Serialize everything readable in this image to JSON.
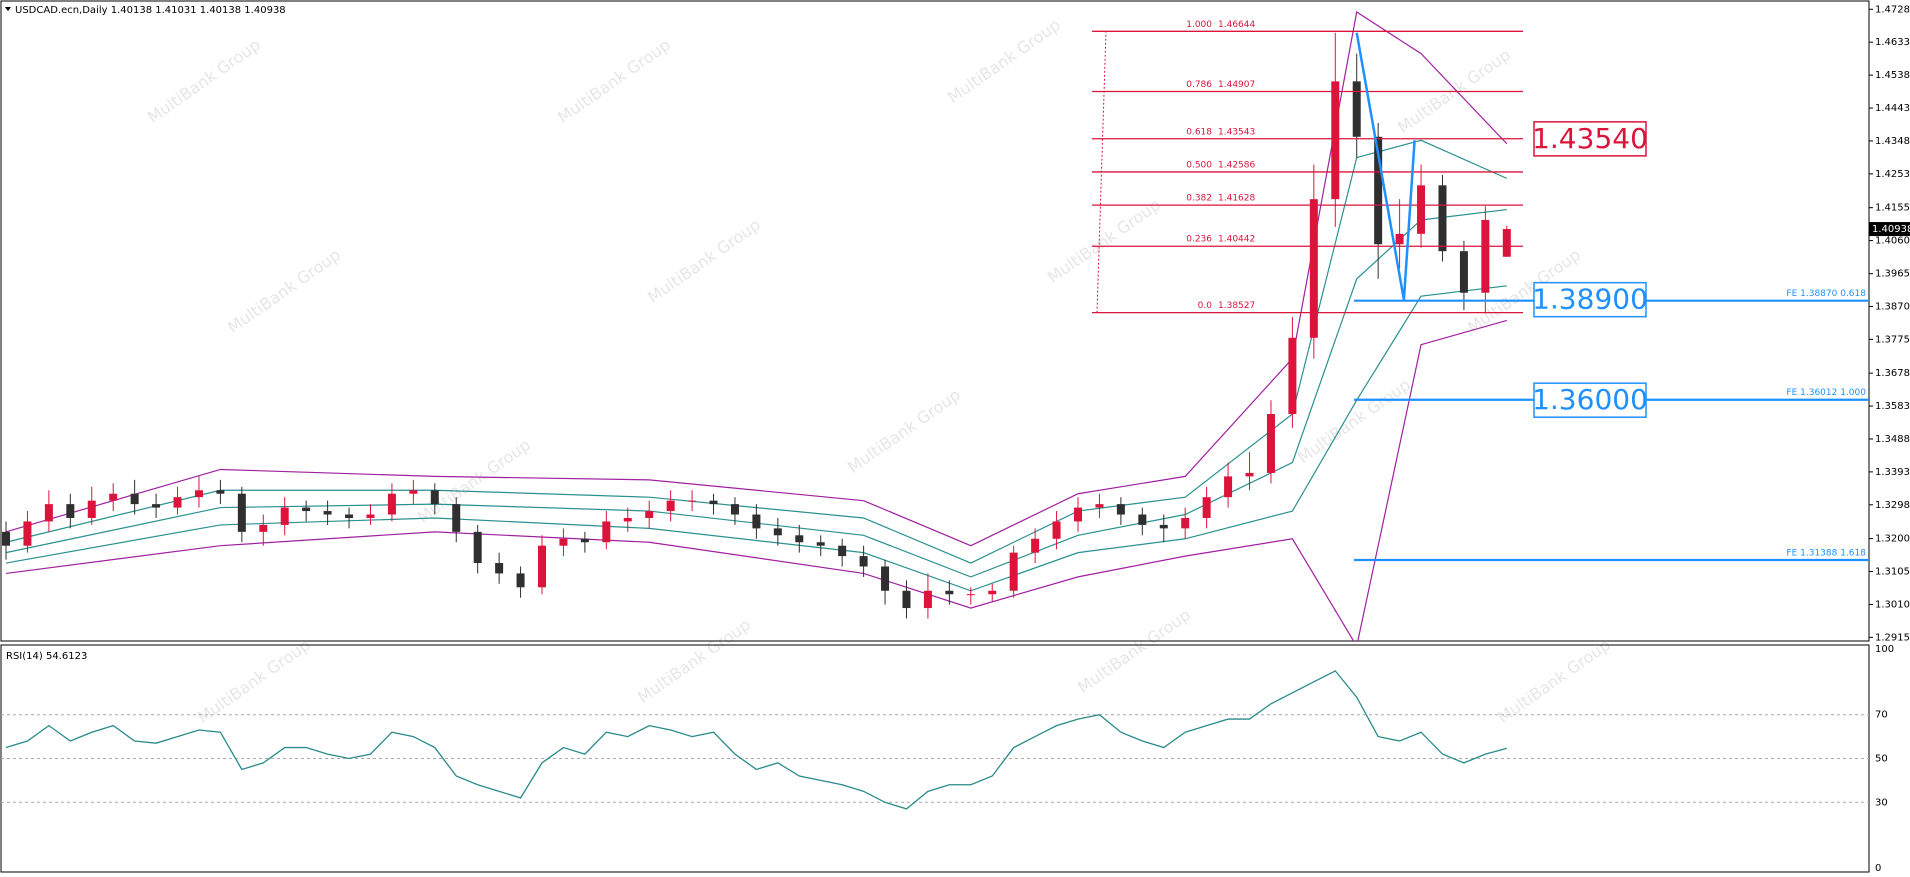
{
  "watermark": "MultiBank Group",
  "chart_data": [
    {
      "type": "candlestick",
      "title": "USDCAD.ecn,Daily  1.40138 1.41031 1.40138 1.40938",
      "up_color": "#dc143c",
      "down_color": "#2f2f2f",
      "open": [
        1.322,
        1.318,
        1.325,
        1.33,
        1.326,
        1.331,
        1.333,
        1.33,
        1.329,
        1.332,
        1.334,
        1.333,
        1.322,
        1.324,
        1.329,
        1.328,
        1.327,
        1.326,
        1.327,
        1.333,
        1.334,
        1.33,
        1.322,
        1.313,
        1.31,
        1.306,
        1.318,
        1.32,
        1.319,
        1.325,
        1.326,
        1.328,
        1.331,
        1.331,
        1.33,
        1.327,
        1.323,
        1.321,
        1.319,
        1.318,
        1.315,
        1.312,
        1.305,
        1.3,
        1.305,
        1.304,
        1.304,
        1.305,
        1.316,
        1.32,
        1.325,
        1.329,
        1.33,
        1.327,
        1.324,
        1.323,
        1.326,
        1.332,
        1.338,
        1.339,
        1.356,
        1.378,
        1.418,
        1.452,
        1.436,
        1.405,
        1.408,
        1.422,
        1.403,
        1.391,
        1.40138
      ],
      "high": [
        1.325,
        1.328,
        1.334,
        1.333,
        1.335,
        1.336,
        1.337,
        1.333,
        1.335,
        1.338,
        1.337,
        1.335,
        1.327,
        1.332,
        1.331,
        1.331,
        1.329,
        1.33,
        1.336,
        1.337,
        1.336,
        1.332,
        1.324,
        1.316,
        1.312,
        1.321,
        1.323,
        1.322,
        1.328,
        1.329,
        1.331,
        1.334,
        1.334,
        1.333,
        1.332,
        1.33,
        1.326,
        1.324,
        1.321,
        1.32,
        1.318,
        1.314,
        1.308,
        1.31,
        1.308,
        1.306,
        1.307,
        1.318,
        1.323,
        1.328,
        1.332,
        1.333,
        1.332,
        1.329,
        1.327,
        1.329,
        1.335,
        1.342,
        1.345,
        1.36,
        1.384,
        1.428,
        1.466,
        1.46,
        1.44,
        1.418,
        1.428,
        1.425,
        1.406,
        1.416,
        1.41031
      ],
      "low": [
        1.314,
        1.316,
        1.322,
        1.323,
        1.324,
        1.328,
        1.327,
        1.326,
        1.327,
        1.329,
        1.33,
        1.319,
        1.318,
        1.321,
        1.325,
        1.324,
        1.323,
        1.324,
        1.325,
        1.33,
        1.327,
        1.319,
        1.31,
        1.307,
        1.303,
        1.304,
        1.315,
        1.316,
        1.317,
        1.322,
        1.323,
        1.325,
        1.328,
        1.327,
        1.324,
        1.32,
        1.318,
        1.316,
        1.315,
        1.312,
        1.309,
        1.301,
        1.297,
        1.297,
        1.301,
        1.301,
        1.302,
        1.303,
        1.313,
        1.317,
        1.322,
        1.326,
        1.324,
        1.321,
        1.319,
        1.32,
        1.323,
        1.329,
        1.334,
        1.336,
        1.352,
        1.372,
        1.41,
        1.43,
        1.395,
        1.398,
        1.404,
        1.4,
        1.386,
        1.385,
        1.40138
      ],
      "close": [
        1.318,
        1.325,
        1.33,
        1.326,
        1.331,
        1.333,
        1.33,
        1.329,
        1.332,
        1.334,
        1.333,
        1.322,
        1.324,
        1.329,
        1.328,
        1.327,
        1.326,
        1.327,
        1.333,
        1.334,
        1.33,
        1.322,
        1.313,
        1.31,
        1.306,
        1.318,
        1.32,
        1.319,
        1.325,
        1.326,
        1.328,
        1.331,
        1.331,
        1.33,
        1.327,
        1.323,
        1.321,
        1.319,
        1.318,
        1.315,
        1.312,
        1.305,
        1.3,
        1.305,
        1.304,
        1.304,
        1.305,
        1.316,
        1.32,
        1.325,
        1.329,
        1.33,
        1.327,
        1.324,
        1.323,
        1.326,
        1.332,
        1.338,
        1.339,
        1.356,
        1.378,
        1.418,
        1.452,
        1.436,
        1.405,
        1.408,
        1.422,
        1.403,
        1.391,
        1.412,
        1.40938
      ],
      "band_x": [
        0,
        10,
        20,
        30,
        40,
        45,
        50,
        55,
        60,
        63,
        66,
        70
      ],
      "bands": [
        {
          "color": "#a020a0",
          "values": [
            1.322,
            1.34,
            1.338,
            1.337,
            1.331,
            1.318,
            1.333,
            1.338,
            1.372,
            1.472,
            1.46,
            1.434
          ]
        },
        {
          "color": "#2a9090",
          "values": [
            1.319,
            1.334,
            1.334,
            1.332,
            1.326,
            1.313,
            1.328,
            1.332,
            1.356,
            1.43,
            1.435,
            1.424
          ]
        },
        {
          "color": "#2a9090",
          "values": [
            1.316,
            1.329,
            1.33,
            1.328,
            1.321,
            1.309,
            1.321,
            1.327,
            1.342,
            1.395,
            1.412,
            1.415
          ]
        },
        {
          "color": "#2a9090",
          "values": [
            1.313,
            1.324,
            1.326,
            1.323,
            1.316,
            1.305,
            1.316,
            1.32,
            1.328,
            1.36,
            1.39,
            1.393
          ]
        },
        {
          "color": "#a020a0",
          "values": [
            1.31,
            1.318,
            1.322,
            1.319,
            1.31,
            1.3,
            1.309,
            1.315,
            1.32,
            1.289,
            1.376,
            1.383
          ]
        }
      ],
      "fib": {
        "color": "#dc143c",
        "levels": [
          {
            "ratio": "1.000",
            "value": 1.46644
          },
          {
            "ratio": "0.786",
            "value": 1.44907
          },
          {
            "ratio": "0.618",
            "value": 1.43543
          },
          {
            "ratio": "0.500",
            "value": 1.42586
          },
          {
            "ratio": "0.382",
            "value": 1.41628
          },
          {
            "ratio": "0.236",
            "value": 1.40442
          },
          {
            "ratio": "0.0",
            "value": 1.38527
          }
        ]
      },
      "targets": [
        {
          "value": 1.4354,
          "label": "1.43540",
          "color": "#dc143c"
        },
        {
          "value": 1.389,
          "label": "1.38900",
          "color": "#1e90ff"
        },
        {
          "value": 1.36,
          "label": "1.36000",
          "color": "#1e90ff"
        }
      ],
      "projections": {
        "color": "#1e90ff",
        "lines": [
          {
            "value": 1.3887,
            "label": "FE 1.38870  0.618"
          },
          {
            "value": 1.36012,
            "label": "FE 1.36012  1.000"
          },
          {
            "value": 1.31388,
            "label": "FE 1.31388  1.618"
          }
        ]
      },
      "pattern": {
        "color": "#1e90ff",
        "x": [
          63,
          65.2,
          65.7
        ],
        "values": [
          1.466,
          1.389,
          1.435
        ]
      },
      "last_price": {
        "value": 1.40938,
        "label": "1.40938"
      },
      "ylim": [
        1.2905,
        1.4749
      ],
      "yticks": [
        {
          "value": 1.4728,
          "label": "1.47280"
        },
        {
          "value": 1.4633,
          "label": "1.46330"
        },
        {
          "value": 1.4538,
          "label": "1.45380"
        },
        {
          "value": 1.4443,
          "label": "1.44430"
        },
        {
          "value": 1.4348,
          "label": "1.43480"
        },
        {
          "value": 1.4253,
          "label": "1.42530"
        },
        {
          "value": 1.41555,
          "label": "1.41555"
        },
        {
          "value": 1.40605,
          "label": "1.40605"
        },
        {
          "value": 1.3965,
          "label": "1.39650"
        },
        {
          "value": 1.38705,
          "label": "1.38705"
        },
        {
          "value": 1.37755,
          "label": "1.37755"
        },
        {
          "value": 1.3678,
          "label": "1.36780"
        },
        {
          "value": 1.3583,
          "label": "1.35830"
        },
        {
          "value": 1.3488,
          "label": "1.34880"
        },
        {
          "value": 1.3393,
          "label": "1.33930"
        },
        {
          "value": 1.3298,
          "label": "1.32980"
        },
        {
          "value": 1.32005,
          "label": "1.32005"
        },
        {
          "value": 1.31055,
          "label": "1.31055"
        },
        {
          "value": 1.30105,
          "label": "1.30105"
        },
        {
          "value": 1.29155,
          "label": "1.29155"
        }
      ]
    },
    {
      "type": "line",
      "title": "RSI(14) 54.6123",
      "color": "#2a8a8a",
      "values": [
        55,
        58,
        65,
        58,
        62,
        65,
        58,
        57,
        60,
        63,
        62,
        45,
        48,
        55,
        55,
        52,
        50,
        52,
        62,
        60,
        55,
        42,
        38,
        35,
        32,
        48,
        55,
        52,
        62,
        60,
        65,
        63,
        60,
        62,
        52,
        45,
        48,
        42,
        40,
        38,
        35,
        30,
        27,
        35,
        38,
        38,
        42,
        55,
        60,
        65,
        68,
        70,
        62,
        58,
        55,
        62,
        65,
        68,
        68,
        75,
        80,
        85,
        90,
        78,
        60,
        58,
        62,
        52,
        48,
        52,
        54.6123
      ],
      "ylim": [
        0,
        100
      ],
      "yticks": [
        100,
        70,
        50,
        30,
        0
      ],
      "grid": true
    }
  ]
}
